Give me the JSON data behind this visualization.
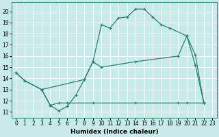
{
  "xlabel": "Humidex (Indice chaleur)",
  "background_color": "#c8eaea",
  "grid_color": "#ffffff",
  "line_color": "#2e7d6e",
  "xlim": [
    -0.5,
    23.5
  ],
  "ylim": [
    10.5,
    20.8
  ],
  "xticks": [
    0,
    1,
    2,
    3,
    4,
    5,
    6,
    7,
    8,
    9,
    10,
    11,
    12,
    13,
    14,
    15,
    16,
    17,
    18,
    19,
    20,
    21,
    22,
    23
  ],
  "yticks": [
    11,
    12,
    13,
    14,
    15,
    16,
    17,
    18,
    19,
    20
  ],
  "line1_x": [
    0,
    1,
    3,
    4,
    5,
    6,
    7,
    8,
    9,
    10,
    11,
    12,
    13,
    14,
    15,
    16,
    17,
    18,
    20,
    21,
    22
  ],
  "line1_y": [
    14.5,
    13.8,
    13.0,
    11.6,
    11.1,
    11.5,
    12.5,
    13.9,
    15.5,
    18.8,
    18.5,
    19.4,
    19.5,
    20.2,
    20.2,
    19.5,
    18.8,
    18.5,
    17.8,
    15.2,
    11.8
  ],
  "line2_x": [
    3,
    4,
    5,
    6,
    9,
    14,
    19,
    20,
    22
  ],
  "line2_y": [
    13.0,
    11.6,
    11.8,
    11.8,
    11.8,
    11.8,
    11.8,
    11.8,
    11.8
  ],
  "line3_x": [
    0,
    1,
    3,
    8,
    9,
    10,
    14,
    19,
    20,
    21,
    22
  ],
  "line3_y": [
    14.5,
    13.8,
    13.0,
    13.9,
    15.5,
    15.0,
    15.5,
    16.0,
    17.8,
    16.1,
    11.8
  ]
}
